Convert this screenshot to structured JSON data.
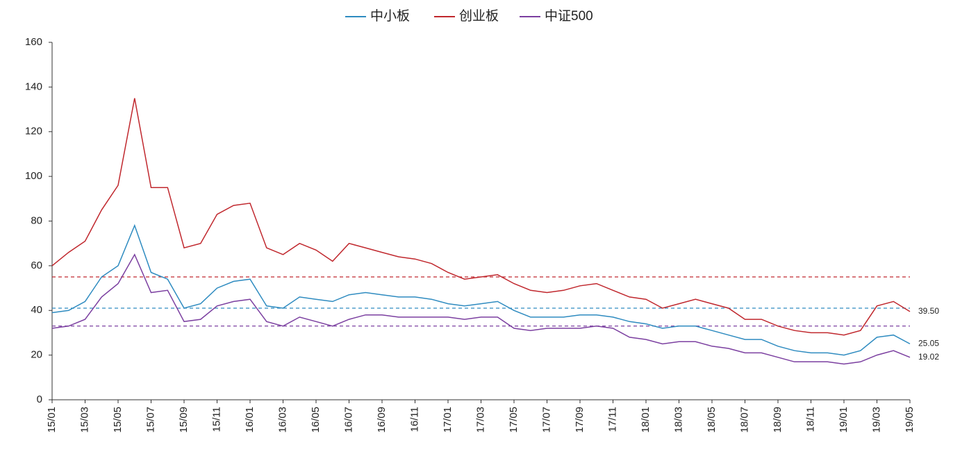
{
  "chart_data": {
    "type": "line",
    "categories": [
      "15/01",
      null,
      "15/03",
      null,
      "15/05",
      null,
      "15/07",
      null,
      "15/09",
      null,
      "15/11",
      null,
      "16/01",
      null,
      "16/03",
      null,
      "16/05",
      null,
      "16/07",
      null,
      "16/09",
      null,
      "16/11",
      null,
      "17/01",
      null,
      "17/03",
      null,
      "17/05",
      null,
      "17/07",
      null,
      "17/09",
      null,
      "17/11",
      null,
      "18/01",
      null,
      "18/03",
      null,
      "18/05",
      null,
      "18/07",
      null,
      "18/09",
      null,
      "18/11",
      null,
      "19/01",
      null,
      "19/03",
      null,
      "19/05"
    ],
    "series": [
      {
        "name": "中小板",
        "color": "#2e8bc0",
        "values": [
          39,
          40,
          44,
          55,
          60,
          78,
          57,
          54,
          41,
          43,
          50,
          53,
          54,
          42,
          41,
          46,
          45,
          44,
          47,
          48,
          47,
          46,
          46,
          45,
          43,
          42,
          43,
          44,
          40,
          37,
          37,
          37,
          38,
          38,
          37,
          35,
          34,
          32,
          33,
          33,
          31,
          29,
          27,
          27,
          24,
          22,
          21,
          21,
          20,
          22,
          28,
          29,
          25.05
        ],
        "value_labels": [
          null,
          null,
          null,
          null,
          null,
          null,
          null,
          null,
          null,
          null,
          null,
          null,
          null,
          null,
          null,
          null,
          null,
          null,
          null,
          null,
          null,
          null,
          null,
          null,
          null,
          null,
          null,
          null,
          null,
          null,
          null,
          null,
          null,
          null,
          null,
          null,
          null,
          null,
          null,
          null,
          null,
          null,
          null,
          null,
          null,
          null,
          null,
          null,
          null,
          null,
          null,
          null,
          "25.05"
        ]
      },
      {
        "name": "创业板",
        "color": "#c0272d",
        "values": [
          60,
          66,
          71,
          85,
          96,
          135,
          95,
          95,
          68,
          70,
          83,
          87,
          88,
          68,
          65,
          70,
          67,
          62,
          70,
          68,
          66,
          64,
          63,
          61,
          57,
          54,
          55,
          56,
          52,
          49,
          48,
          49,
          51,
          52,
          49,
          46,
          45,
          41,
          43,
          45,
          43,
          41,
          36,
          36,
          33,
          31,
          30,
          30,
          29,
          31,
          42,
          44,
          39.5
        ],
        "value_labels": [
          null,
          null,
          null,
          null,
          null,
          null,
          null,
          null,
          null,
          null,
          null,
          null,
          null,
          null,
          null,
          null,
          null,
          null,
          null,
          null,
          null,
          null,
          null,
          null,
          null,
          null,
          null,
          null,
          null,
          null,
          null,
          null,
          null,
          null,
          null,
          null,
          null,
          null,
          null,
          null,
          null,
          null,
          null,
          null,
          null,
          null,
          null,
          null,
          null,
          null,
          null,
          null,
          "39.50"
        ]
      },
      {
        "name": "中证500",
        "color": "#7b3fa0",
        "values": [
          32,
          33,
          36,
          46,
          52,
          65,
          48,
          49,
          35,
          36,
          42,
          44,
          45,
          35,
          33,
          37,
          35,
          33,
          36,
          38,
          38,
          37,
          37,
          37,
          37,
          36,
          37,
          37,
          32,
          31,
          32,
          32,
          32,
          33,
          32,
          28,
          27,
          25,
          26,
          26,
          24,
          23,
          21,
          21,
          19,
          17,
          17,
          17,
          16,
          17,
          20,
          22,
          19.02
        ],
        "value_labels": [
          null,
          null,
          null,
          null,
          null,
          null,
          null,
          null,
          null,
          null,
          null,
          null,
          null,
          null,
          null,
          null,
          null,
          null,
          null,
          null,
          null,
          null,
          null,
          null,
          null,
          null,
          null,
          null,
          null,
          null,
          null,
          null,
          null,
          null,
          null,
          null,
          null,
          null,
          null,
          null,
          null,
          null,
          null,
          null,
          null,
          null,
          null,
          null,
          null,
          null,
          null,
          null,
          "19.02"
        ]
      }
    ],
    "reference_lines": [
      {
        "value": 55,
        "color": "#c0272d"
      },
      {
        "value": 41,
        "color": "#2e8bc0"
      },
      {
        "value": 33,
        "color": "#7b3fa0"
      }
    ],
    "ylim": [
      0,
      160
    ],
    "yticks": [
      0,
      20,
      40,
      60,
      80,
      100,
      120,
      140,
      160
    ],
    "grid": false,
    "legend": "top"
  }
}
